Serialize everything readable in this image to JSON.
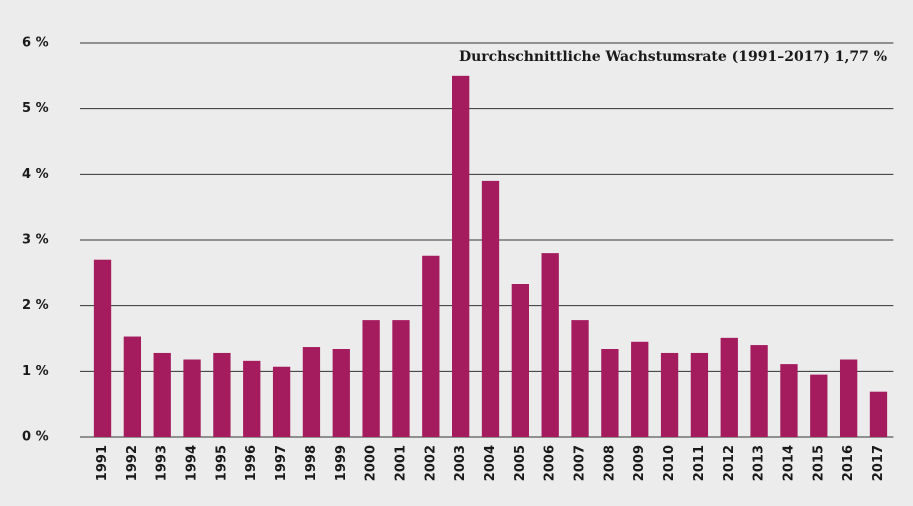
{
  "chart_data": {
    "type": "bar",
    "annotation": "Durchschnittliche Wachstumsrate (1991–2017) 1,77 %",
    "categories": [
      "1991",
      "1992",
      "1993",
      "1994",
      "1995",
      "1996",
      "1997",
      "1998",
      "1999",
      "2000",
      "2001",
      "2002",
      "2003",
      "2004",
      "2005",
      "2006",
      "2007",
      "2008",
      "2009",
      "2010",
      "2011",
      "2012",
      "2013",
      "2014",
      "2015",
      "2016",
      "2017"
    ],
    "values": [
      2.7,
      1.53,
      1.28,
      1.18,
      1.28,
      1.16,
      1.07,
      1.37,
      1.34,
      1.78,
      1.78,
      2.76,
      5.5,
      3.9,
      2.33,
      2.8,
      1.78,
      1.34,
      1.45,
      1.28,
      1.28,
      1.51,
      1.4,
      1.11,
      0.95,
      1.18,
      0.69
    ],
    "color": "#a51c5e",
    "ylim": [
      0,
      6
    ],
    "yticks": [
      {
        "value": 0,
        "label": "0 %"
      },
      {
        "value": 1,
        "label": "1 %"
      },
      {
        "value": 2,
        "label": "2 %"
      },
      {
        "value": 3,
        "label": "3 %"
      },
      {
        "value": 4,
        "label": "4 %"
      },
      {
        "value": 5,
        "label": "5 %"
      },
      {
        "value": 6,
        "label": "6 %"
      }
    ],
    "grid": true
  }
}
